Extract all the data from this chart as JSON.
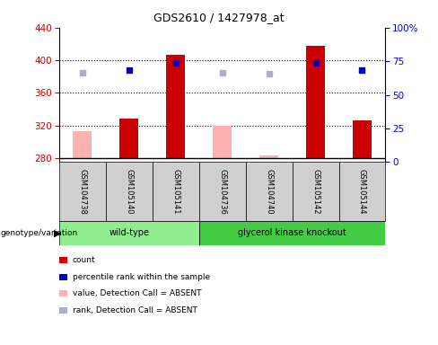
{
  "title": "GDS2610 / 1427978_at",
  "samples": [
    "GSM104738",
    "GSM105140",
    "GSM105141",
    "GSM104736",
    "GSM104740",
    "GSM105142",
    "GSM105144"
  ],
  "count_values": [
    null,
    328,
    407,
    null,
    null,
    418,
    326
  ],
  "count_absent_values": [
    313,
    null,
    null,
    320,
    283,
    null,
    null
  ],
  "percentile_rank": [
    null,
    388,
    397,
    null,
    null,
    397,
    388
  ],
  "percentile_rank_absent": [
    385,
    null,
    null,
    385,
    383,
    null,
    null
  ],
  "ylim_left": [
    275,
    440
  ],
  "ylim_right": [
    0,
    100
  ],
  "yticks_left": [
    280,
    320,
    360,
    400,
    440
  ],
  "yticks_right": [
    0,
    25,
    50,
    75,
    100
  ],
  "bar_color": "#cc0000",
  "bar_absent_color": "#ffb0b0",
  "dot_color": "#0000cc",
  "dot_absent_color": "#aab0cc",
  "wt_color": "#90ee90",
  "gk_color": "#44cc44",
  "wt_label": "wild-type",
  "gk_label": "glycerol kinase knockout",
  "n_wt": 3,
  "n_gk": 4,
  "baseline": 280,
  "legend_items": [
    {
      "label": "count",
      "color": "#cc0000"
    },
    {
      "label": "percentile rank within the sample",
      "color": "#0000cc"
    },
    {
      "label": "value, Detection Call = ABSENT",
      "color": "#ffb0b0"
    },
    {
      "label": "rank, Detection Call = ABSENT",
      "color": "#aab0cc"
    }
  ]
}
